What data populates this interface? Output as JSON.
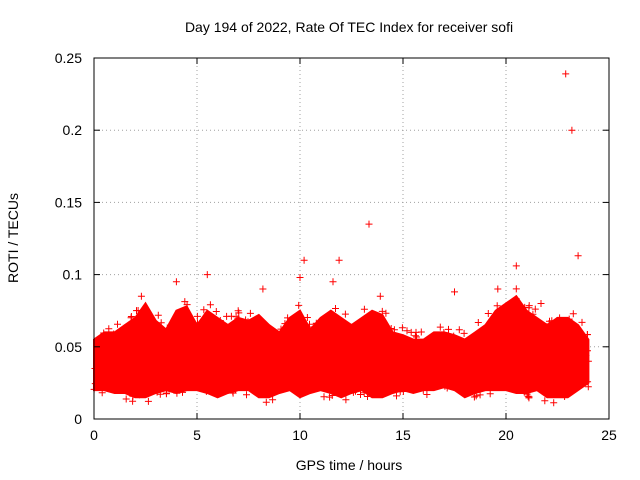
{
  "chart_data": {
    "type": "scatter",
    "title": "Day 194 of 2022, Rate Of TEC Index for receiver sofi",
    "xlabel": "GPS time / hours",
    "ylabel": "ROTI / TECUs",
    "xlim": [
      0,
      25
    ],
    "ylim": [
      0,
      0.25
    ],
    "x_ticks": [
      0,
      5,
      10,
      15,
      20,
      25
    ],
    "x_tick_labels": [
      "0",
      "5",
      "10",
      "15",
      "20",
      "25"
    ],
    "y_ticks": [
      0,
      0.05,
      0.1,
      0.15,
      0.2,
      0.25
    ],
    "y_tick_labels": [
      "0",
      "0.05",
      "0.1",
      "0.15",
      "0.2",
      "0.25"
    ],
    "grid": true,
    "marker": "plus",
    "series": [
      {
        "name": "ROTI",
        "color": "#ff0000",
        "x": [
          0.05,
          0.2,
          0.4,
          0.7,
          1.0,
          1.3,
          1.6,
          1.9,
          2.1,
          2.3,
          2.5,
          2.8,
          3.1,
          3.4,
          3.7,
          4.0,
          4.2,
          4.4,
          4.7,
          5.0,
          5.3,
          5.5,
          5.8,
          6.1,
          6.4,
          6.7,
          7.0,
          7.3,
          7.6,
          7.9,
          8.2,
          8.5,
          8.8,
          9.1,
          9.4,
          9.7,
          10.0,
          10.2,
          10.4,
          10.7,
          11.0,
          11.3,
          11.6,
          11.9,
          12.2,
          12.5,
          12.8,
          13.1,
          13.35,
          13.6,
          13.9,
          14.2,
          14.5,
          14.8,
          15.1,
          15.4,
          15.7,
          16.0,
          16.3,
          16.6,
          16.9,
          17.2,
          17.5,
          17.8,
          18.1,
          18.4,
          18.7,
          19.0,
          19.3,
          19.6,
          19.9,
          20.2,
          20.5,
          20.8,
          21.1,
          21.4,
          21.7,
          22.0,
          22.3,
          22.6,
          22.9,
          23.2,
          23.5,
          23.8,
          24.0
        ],
        "y": [
          0.035,
          0.05,
          0.025,
          0.045,
          0.03,
          0.055,
          0.04,
          0.06,
          0.035,
          0.085,
          0.045,
          0.03,
          0.05,
          0.04,
          0.065,
          0.095,
          0.055,
          0.035,
          0.045,
          0.06,
          0.03,
          0.1,
          0.05,
          0.04,
          0.055,
          0.035,
          0.075,
          0.045,
          0.03,
          0.05,
          0.09,
          0.04,
          0.06,
          0.035,
          0.07,
          0.045,
          0.098,
          0.11,
          0.05,
          0.035,
          0.065,
          0.04,
          0.095,
          0.11,
          0.045,
          0.03,
          0.06,
          0.05,
          0.135,
          0.04,
          0.085,
          0.055,
          0.035,
          0.05,
          0.04,
          0.06,
          0.03,
          0.045,
          0.055,
          0.035,
          0.05,
          0.04,
          0.088,
          0.03,
          0.045,
          0.055,
          0.04,
          0.06,
          0.035,
          0.09,
          0.05,
          0.045,
          0.106,
          0.04,
          0.055,
          0.035,
          0.08,
          0.05,
          0.04,
          0.07,
          0.239,
          0.2,
          0.113,
          0.045,
          0.04
        ]
      }
    ],
    "band": {
      "x": [
        0,
        0.5,
        1,
        1.5,
        2,
        2.5,
        3,
        3.5,
        4,
        4.5,
        5,
        5.5,
        6,
        6.5,
        7,
        7.5,
        8,
        8.5,
        9,
        9.5,
        10,
        10.5,
        11,
        11.5,
        12,
        12.5,
        13,
        13.5,
        14,
        14.5,
        15,
        15.5,
        16,
        16.5,
        17,
        17.5,
        18,
        18.5,
        19,
        19.5,
        20,
        20.5,
        21,
        21.5,
        22,
        22.5,
        23,
        23.5,
        24
      ],
      "low": [
        0.02,
        0.02,
        0.018,
        0.018,
        0.015,
        0.015,
        0.018,
        0.02,
        0.018,
        0.02,
        0.02,
        0.018,
        0.015,
        0.018,
        0.02,
        0.02,
        0.015,
        0.015,
        0.018,
        0.02,
        0.015,
        0.018,
        0.02,
        0.018,
        0.015,
        0.018,
        0.02,
        0.015,
        0.015,
        0.018,
        0.02,
        0.018,
        0.02,
        0.02,
        0.022,
        0.02,
        0.015,
        0.018,
        0.02,
        0.02,
        0.02,
        0.018,
        0.018,
        0.02,
        0.015,
        0.015,
        0.015,
        0.02,
        0.025
      ],
      "high": [
        0.055,
        0.06,
        0.06,
        0.065,
        0.07,
        0.08,
        0.068,
        0.062,
        0.075,
        0.078,
        0.065,
        0.075,
        0.07,
        0.065,
        0.07,
        0.068,
        0.072,
        0.065,
        0.06,
        0.07,
        0.075,
        0.062,
        0.07,
        0.075,
        0.07,
        0.065,
        0.07,
        0.075,
        0.072,
        0.06,
        0.058,
        0.055,
        0.055,
        0.06,
        0.06,
        0.058,
        0.055,
        0.06,
        0.065,
        0.075,
        0.08,
        0.085,
        0.075,
        0.07,
        0.065,
        0.07,
        0.07,
        0.065,
        0.055
      ]
    }
  }
}
